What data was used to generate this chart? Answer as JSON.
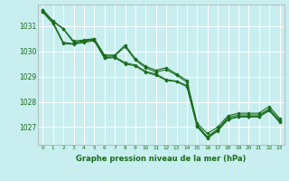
{
  "background_color": "#c8eef0",
  "grid_color": "#ffffff",
  "line_color": "#1a6b1a",
  "marker_color": "#1a6b1a",
  "xlabel": "Graphe pression niveau de la mer (hPa)",
  "xlabel_color": "#1a6b1a",
  "ylim": [
    1026.3,
    1031.85
  ],
  "xlim": [
    -0.5,
    23.5
  ],
  "yticks": [
    1027,
    1028,
    1029,
    1030,
    1031
  ],
  "xticks": [
    0,
    1,
    2,
    3,
    4,
    5,
    6,
    7,
    8,
    9,
    10,
    11,
    12,
    13,
    14,
    15,
    16,
    17,
    18,
    19,
    20,
    21,
    22,
    23
  ],
  "series": [
    [
      1031.65,
      1031.2,
      1030.9,
      1030.4,
      1030.45,
      1030.5,
      1029.85,
      1029.85,
      1030.25,
      1029.7,
      1029.4,
      1029.25,
      1029.35,
      1029.1,
      1028.85,
      1027.15,
      1026.75,
      1027.0,
      1027.45,
      1027.55,
      1027.55,
      1027.55,
      1027.82,
      1027.35
    ],
    [
      1031.62,
      1031.18,
      1030.88,
      1030.35,
      1030.42,
      1030.48,
      1029.8,
      1029.82,
      1030.18,
      1029.65,
      1029.35,
      1029.18,
      1029.28,
      1029.05,
      1028.78,
      1027.08,
      1026.62,
      1026.92,
      1027.38,
      1027.48,
      1027.48,
      1027.48,
      1027.72,
      1027.28
    ],
    [
      1031.58,
      1031.15,
      1030.35,
      1030.3,
      1030.38,
      1030.45,
      1029.75,
      1029.78,
      1029.55,
      1029.45,
      1029.2,
      1029.1,
      1028.88,
      1028.82,
      1028.65,
      1027.05,
      1026.58,
      1026.88,
      1027.32,
      1027.42,
      1027.42,
      1027.42,
      1027.68,
      1027.22
    ],
    [
      1031.55,
      1031.1,
      1030.3,
      1030.28,
      1030.35,
      1030.42,
      1029.72,
      1029.75,
      1029.5,
      1029.42,
      1029.17,
      1029.05,
      1028.85,
      1028.8,
      1028.6,
      1027.02,
      1026.55,
      1026.85,
      1027.3,
      1027.4,
      1027.4,
      1027.4,
      1027.65,
      1027.2
    ]
  ]
}
